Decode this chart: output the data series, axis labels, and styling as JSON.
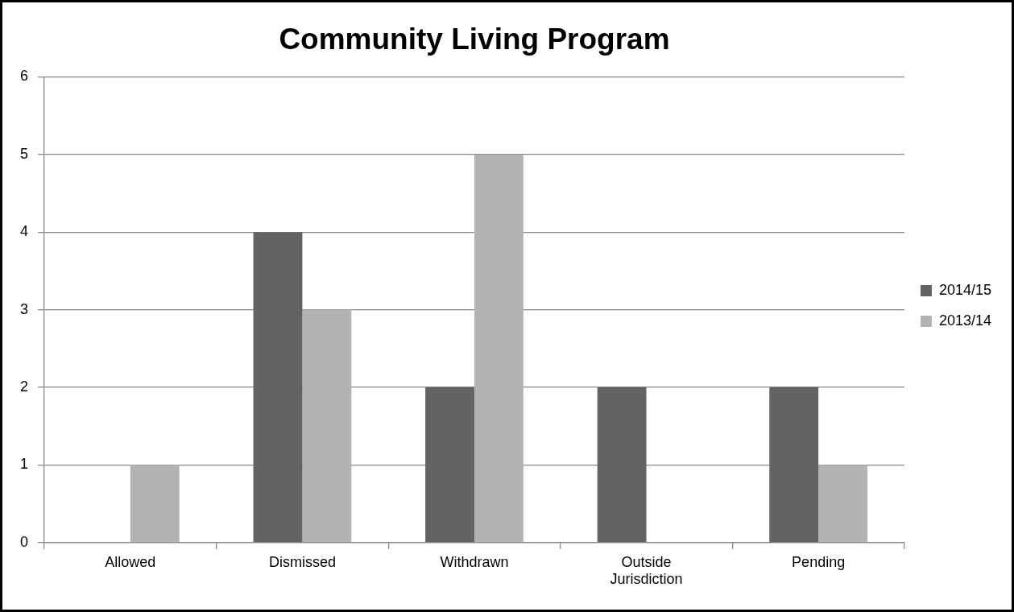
{
  "chart_data": {
    "type": "bar",
    "title": "Community Living Program",
    "categories": [
      "Allowed",
      "Dismissed",
      "Withdrawn",
      "Outside Jurisdiction",
      "Pending"
    ],
    "series": [
      {
        "name": "2014/15",
        "color": "#636363",
        "values": [
          0,
          4,
          2,
          2,
          2
        ]
      },
      {
        "name": "2013/14",
        "color": "#b3b3b3",
        "values": [
          1,
          3,
          5,
          0,
          1
        ]
      }
    ],
    "ylim": [
      0,
      6
    ],
    "yticks": [
      0,
      1,
      2,
      3,
      4,
      5,
      6
    ],
    "grid": "y",
    "legend": "right"
  }
}
